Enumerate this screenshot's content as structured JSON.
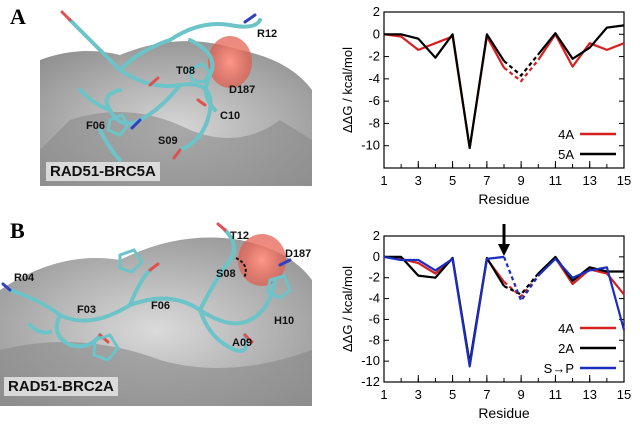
{
  "panels": [
    {
      "letter": "A",
      "structure_title": "RAD51-BRC5A",
      "residue_labels": [
        "R12",
        "T08",
        "D187",
        "C10",
        "F06",
        "S09"
      ]
    },
    {
      "letter": "B",
      "structure_title": "RAD51-BRC2A",
      "residue_labels": [
        "T12",
        "D187",
        "S08",
        "R04",
        "F03",
        "F06",
        "H10",
        "A09"
      ]
    }
  ],
  "colors": {
    "red": "#d62020",
    "black": "#000000",
    "blue": "#1a2ebf",
    "surface": "#9a9a9a",
    "stick": "#7fcfd2"
  },
  "chart_data": [
    {
      "type": "line",
      "xlabel": "Residue",
      "ylabel": "ΔΔG / kcal/mol",
      "xlim": [
        1,
        15
      ],
      "ylim": [
        -12,
        2
      ],
      "xticks": [
        "1",
        "3",
        "5",
        "7",
        "9",
        "11",
        "13",
        "15"
      ],
      "yticks": [
        "2",
        "0",
        "-2",
        "-4",
        "-6",
        "-8",
        "-10"
      ],
      "legend_position": "lower-right",
      "dashed_segment": [
        8,
        10
      ],
      "series": [
        {
          "name": "4A",
          "color": "#d62020",
          "x": [
            1,
            2,
            3,
            4,
            5,
            6,
            7,
            8,
            9,
            10,
            11,
            12,
            13,
            14,
            15
          ],
          "y": [
            0,
            -0.2,
            -1.4,
            -0.8,
            -0.2,
            -10.2,
            -0.2,
            -3.0,
            -4.2,
            -2.3,
            0,
            -2.9,
            -0.8,
            -1.4,
            -0.8
          ]
        },
        {
          "name": "5A",
          "color": "#000000",
          "x": [
            1,
            2,
            3,
            4,
            5,
            6,
            7,
            8,
            9,
            10,
            11,
            12,
            13,
            14,
            15
          ],
          "y": [
            0,
            0,
            -0.4,
            -2.1,
            0,
            -10.2,
            0,
            -2.4,
            -3.7,
            -1.8,
            0.1,
            -2.2,
            -1.2,
            0.6,
            0.8
          ]
        }
      ]
    },
    {
      "type": "line",
      "xlabel": "Residue",
      "ylabel": "ΔΔG / kcal/mol",
      "xlim": [
        1,
        15
      ],
      "ylim": [
        -12,
        2
      ],
      "xticks": [
        "1",
        "3",
        "5",
        "7",
        "9",
        "11",
        "13",
        "15"
      ],
      "yticks": [
        "2",
        "0",
        "-2",
        "-4",
        "-6",
        "-8",
        "-10",
        "-12"
      ],
      "legend_position": "lower-right",
      "dashed_segment": [
        8,
        10
      ],
      "arrow_at": 8,
      "series": [
        {
          "name": "4A",
          "color": "#d62020",
          "x": [
            1,
            2,
            3,
            4,
            5,
            6,
            7,
            8,
            9,
            10,
            11,
            12,
            13,
            14,
            15
          ],
          "y": [
            0,
            -0.2,
            -0.6,
            -1.6,
            -0.2,
            -10.3,
            -0.2,
            -2.4,
            -3.8,
            -1.8,
            -0.1,
            -2.6,
            -1.2,
            -1.6,
            -3.6
          ]
        },
        {
          "name": "2A",
          "color": "#000000",
          "x": [
            1,
            2,
            3,
            4,
            5,
            6,
            7,
            8,
            9,
            10,
            11,
            12,
            13,
            14,
            15
          ],
          "y": [
            0,
            0,
            -1.8,
            -2.0,
            -0.1,
            -10.2,
            -0.1,
            -2.8,
            -3.6,
            -1.6,
            0,
            -2.3,
            -1.0,
            -1.4,
            -1.4
          ]
        },
        {
          "name": "S→P",
          "color": "#1a2ebf",
          "x": [
            1,
            2,
            3,
            4,
            5,
            6,
            7,
            8,
            9,
            10,
            11,
            12,
            13,
            14,
            15
          ],
          "y": [
            0,
            -0.3,
            -0.3,
            -1.3,
            -0.2,
            -10.5,
            -0.2,
            0,
            -4.2,
            -1.8,
            -0.2,
            -2.0,
            -1.3,
            -1.0,
            -7.0
          ]
        }
      ]
    }
  ]
}
